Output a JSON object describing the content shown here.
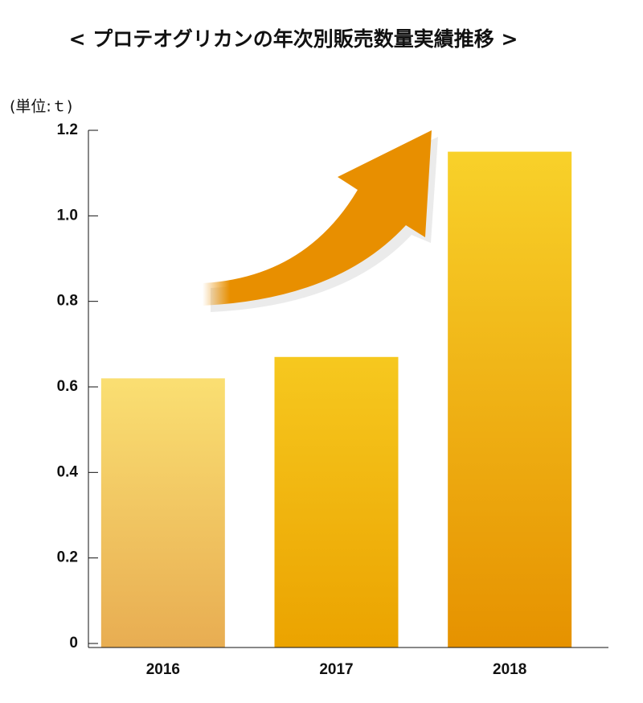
{
  "chart_data": {
    "type": "bar",
    "title": "< プロテオグリカンの年次別販売数量実績推移 >",
    "y_label": "(単位:ｔ)",
    "categories": [
      "2016",
      "2017",
      "2018"
    ],
    "values": [
      0.62,
      0.67,
      1.15
    ],
    "ylim": [
      0,
      1.2
    ],
    "yticks": [
      0,
      0.2,
      0.4,
      0.6,
      0.8,
      {
        "value": 1,
        "label": "1.0"
      },
      1.2
    ]
  }
}
